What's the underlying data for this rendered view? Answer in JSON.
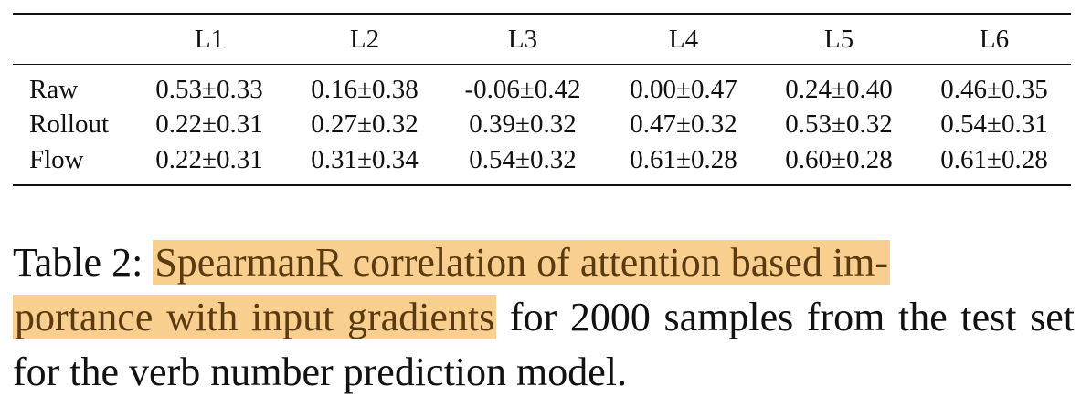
{
  "table": {
    "columns": [
      "L1",
      "L2",
      "L3",
      "L4",
      "L5",
      "L6"
    ],
    "rows": [
      {
        "label": "Raw",
        "values": [
          "0.53±0.33",
          "0.16±0.38",
          "-0.06±0.42",
          "0.00±0.47",
          "0.24±0.40",
          "0.46±0.35"
        ]
      },
      {
        "label": "Rollout",
        "values": [
          "0.22±0.31",
          "0.27±0.32",
          "0.39±0.32",
          "0.47±0.32",
          "0.53±0.32",
          "0.54±0.31"
        ]
      },
      {
        "label": "Flow",
        "values": [
          "0.22±0.31",
          "0.31±0.34",
          "0.54±0.32",
          "0.61±0.28",
          "0.60±0.28",
          "0.61±0.28"
        ]
      }
    ]
  },
  "caption": {
    "prefix": "Table 2: ",
    "highlight_1": "SpearmanR correlation of attention based im-",
    "highlight_2": "portance with input gradients",
    "rest": " for 2000 samples from the test set for the verb number prediction model."
  },
  "colors": {
    "highlight_bg": "#f9cf8f",
    "highlight_text": "#5a3a10",
    "text": "#111111"
  }
}
